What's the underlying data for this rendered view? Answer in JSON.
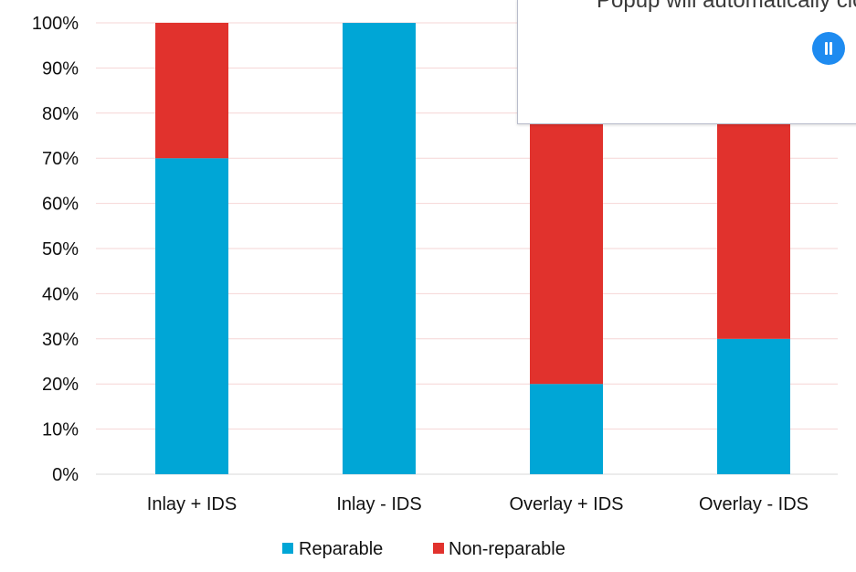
{
  "chart_data": {
    "type": "bar",
    "stacked": true,
    "categories": [
      "Inlay + IDS",
      "Inlay - IDS",
      "Overlay + IDS",
      "Overlay - IDS"
    ],
    "series": [
      {
        "name": "Reparable",
        "values": [
          70,
          100,
          20,
          30
        ],
        "color": "#00a6d6"
      },
      {
        "name": "Non-reparable",
        "values": [
          30,
          0,
          80,
          70
        ],
        "color": "#e1322d"
      }
    ],
    "y_ticks": [
      "0%",
      "10%",
      "20%",
      "30%",
      "40%",
      "50%",
      "60%",
      "70%",
      "80%",
      "90%",
      "100%"
    ],
    "ylim": [
      0,
      100
    ],
    "grid": true,
    "legend_position": "bottom"
  },
  "popup": {
    "message": "Popup will automatically close in",
    "pause_icon": "pause-icon",
    "pause_color": "#1e8bf0"
  }
}
